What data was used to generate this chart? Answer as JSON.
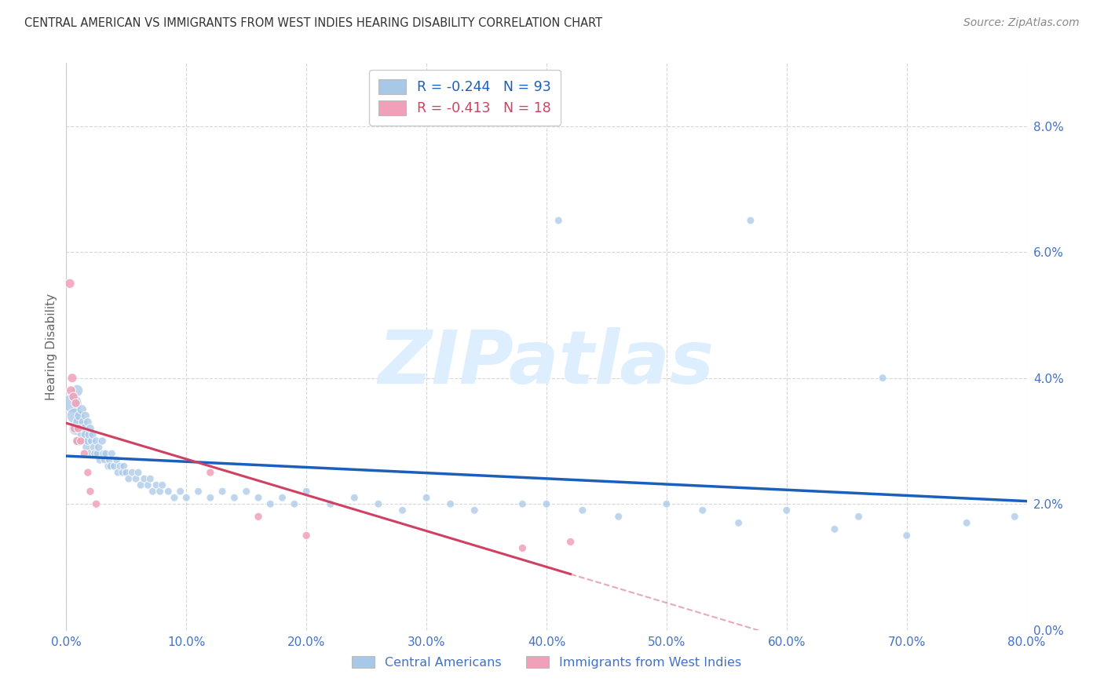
{
  "title": "CENTRAL AMERICAN VS IMMIGRANTS FROM WEST INDIES HEARING DISABILITY CORRELATION CHART",
  "source": "Source: ZipAtlas.com",
  "ylabel": "Hearing Disability",
  "legend1_label": "Central Americans",
  "legend2_label": "Immigrants from West Indies",
  "r1": -0.244,
  "n1": 93,
  "r2": -0.413,
  "n2": 18,
  "xlim": [
    0.0,
    0.8
  ],
  "ylim": [
    0.0,
    0.09
  ],
  "yticks": [
    0.0,
    0.02,
    0.04,
    0.06,
    0.08
  ],
  "xticks": [
    0.0,
    0.1,
    0.2,
    0.3,
    0.4,
    0.5,
    0.6,
    0.7,
    0.8
  ],
  "color_blue": "#a8c8e8",
  "color_pink": "#f0a0b8",
  "trendline_blue": "#1a5fbb",
  "trendline_pink": "#d04060",
  "background_color": "#ffffff",
  "grid_color": "#cccccc",
  "title_color": "#333333",
  "tick_label_color": "#4472c4",
  "ylabel_color": "#666666",
  "source_color": "#888888",
  "watermark_color": "#ddeeff",
  "watermark_text": "ZIPatlas",
  "blue_scatter_x": [
    0.005,
    0.007,
    0.008,
    0.009,
    0.01,
    0.01,
    0.011,
    0.012,
    0.013,
    0.013,
    0.014,
    0.015,
    0.015,
    0.016,
    0.016,
    0.017,
    0.018,
    0.018,
    0.019,
    0.02,
    0.02,
    0.021,
    0.022,
    0.023,
    0.024,
    0.025,
    0.026,
    0.027,
    0.028,
    0.03,
    0.031,
    0.032,
    0.033,
    0.035,
    0.036,
    0.037,
    0.038,
    0.04,
    0.042,
    0.043,
    0.045,
    0.047,
    0.048,
    0.05,
    0.052,
    0.055,
    0.058,
    0.06,
    0.062,
    0.065,
    0.068,
    0.07,
    0.072,
    0.075,
    0.078,
    0.08,
    0.085,
    0.09,
    0.095,
    0.1,
    0.11,
    0.12,
    0.13,
    0.14,
    0.15,
    0.16,
    0.17,
    0.18,
    0.19,
    0.2,
    0.22,
    0.24,
    0.26,
    0.28,
    0.3,
    0.32,
    0.34,
    0.38,
    0.4,
    0.43,
    0.46,
    0.5,
    0.53,
    0.56,
    0.6,
    0.64,
    0.66,
    0.7,
    0.75,
    0.79,
    0.41,
    0.57,
    0.68
  ],
  "blue_scatter_y": [
    0.036,
    0.034,
    0.032,
    0.038,
    0.033,
    0.03,
    0.034,
    0.032,
    0.035,
    0.031,
    0.033,
    0.032,
    0.03,
    0.031,
    0.034,
    0.029,
    0.033,
    0.03,
    0.031,
    0.032,
    0.028,
    0.03,
    0.031,
    0.029,
    0.028,
    0.03,
    0.028,
    0.029,
    0.027,
    0.03,
    0.028,
    0.027,
    0.028,
    0.026,
    0.027,
    0.026,
    0.028,
    0.026,
    0.027,
    0.025,
    0.026,
    0.025,
    0.026,
    0.025,
    0.024,
    0.025,
    0.024,
    0.025,
    0.023,
    0.024,
    0.023,
    0.024,
    0.022,
    0.023,
    0.022,
    0.023,
    0.022,
    0.021,
    0.022,
    0.021,
    0.022,
    0.021,
    0.022,
    0.021,
    0.022,
    0.021,
    0.02,
    0.021,
    0.02,
    0.022,
    0.02,
    0.021,
    0.02,
    0.019,
    0.021,
    0.02,
    0.019,
    0.02,
    0.02,
    0.019,
    0.018,
    0.02,
    0.019,
    0.017,
    0.019,
    0.016,
    0.018,
    0.015,
    0.017,
    0.018,
    0.065,
    0.065,
    0.04
  ],
  "blue_scatter_sizes": [
    300,
    200,
    160,
    120,
    100,
    90,
    80,
    80,
    80,
    75,
    70,
    70,
    70,
    65,
    65,
    65,
    60,
    60,
    60,
    60,
    55,
    55,
    55,
    55,
    55,
    55,
    55,
    55,
    55,
    55,
    50,
    50,
    50,
    50,
    50,
    50,
    50,
    50,
    50,
    50,
    50,
    50,
    50,
    50,
    50,
    50,
    50,
    50,
    50,
    50,
    50,
    50,
    50,
    50,
    50,
    50,
    50,
    50,
    50,
    50,
    50,
    50,
    50,
    50,
    50,
    50,
    50,
    50,
    50,
    50,
    50,
    50,
    50,
    50,
    50,
    50,
    50,
    50,
    50,
    50,
    50,
    50,
    50,
    50,
    50,
    50,
    50,
    50,
    50,
    50,
    50,
    50,
    50
  ],
  "pink_scatter_x": [
    0.003,
    0.004,
    0.005,
    0.006,
    0.007,
    0.008,
    0.009,
    0.01,
    0.012,
    0.015,
    0.018,
    0.02,
    0.025,
    0.12,
    0.16,
    0.2,
    0.38,
    0.42
  ],
  "pink_scatter_y": [
    0.055,
    0.038,
    0.04,
    0.037,
    0.032,
    0.036,
    0.03,
    0.032,
    0.03,
    0.028,
    0.025,
    0.022,
    0.02,
    0.025,
    0.018,
    0.015,
    0.013,
    0.014
  ],
  "pink_scatter_sizes": [
    80,
    75,
    75,
    70,
    70,
    65,
    65,
    60,
    55,
    55,
    55,
    55,
    55,
    55,
    55,
    55,
    55,
    55
  ]
}
